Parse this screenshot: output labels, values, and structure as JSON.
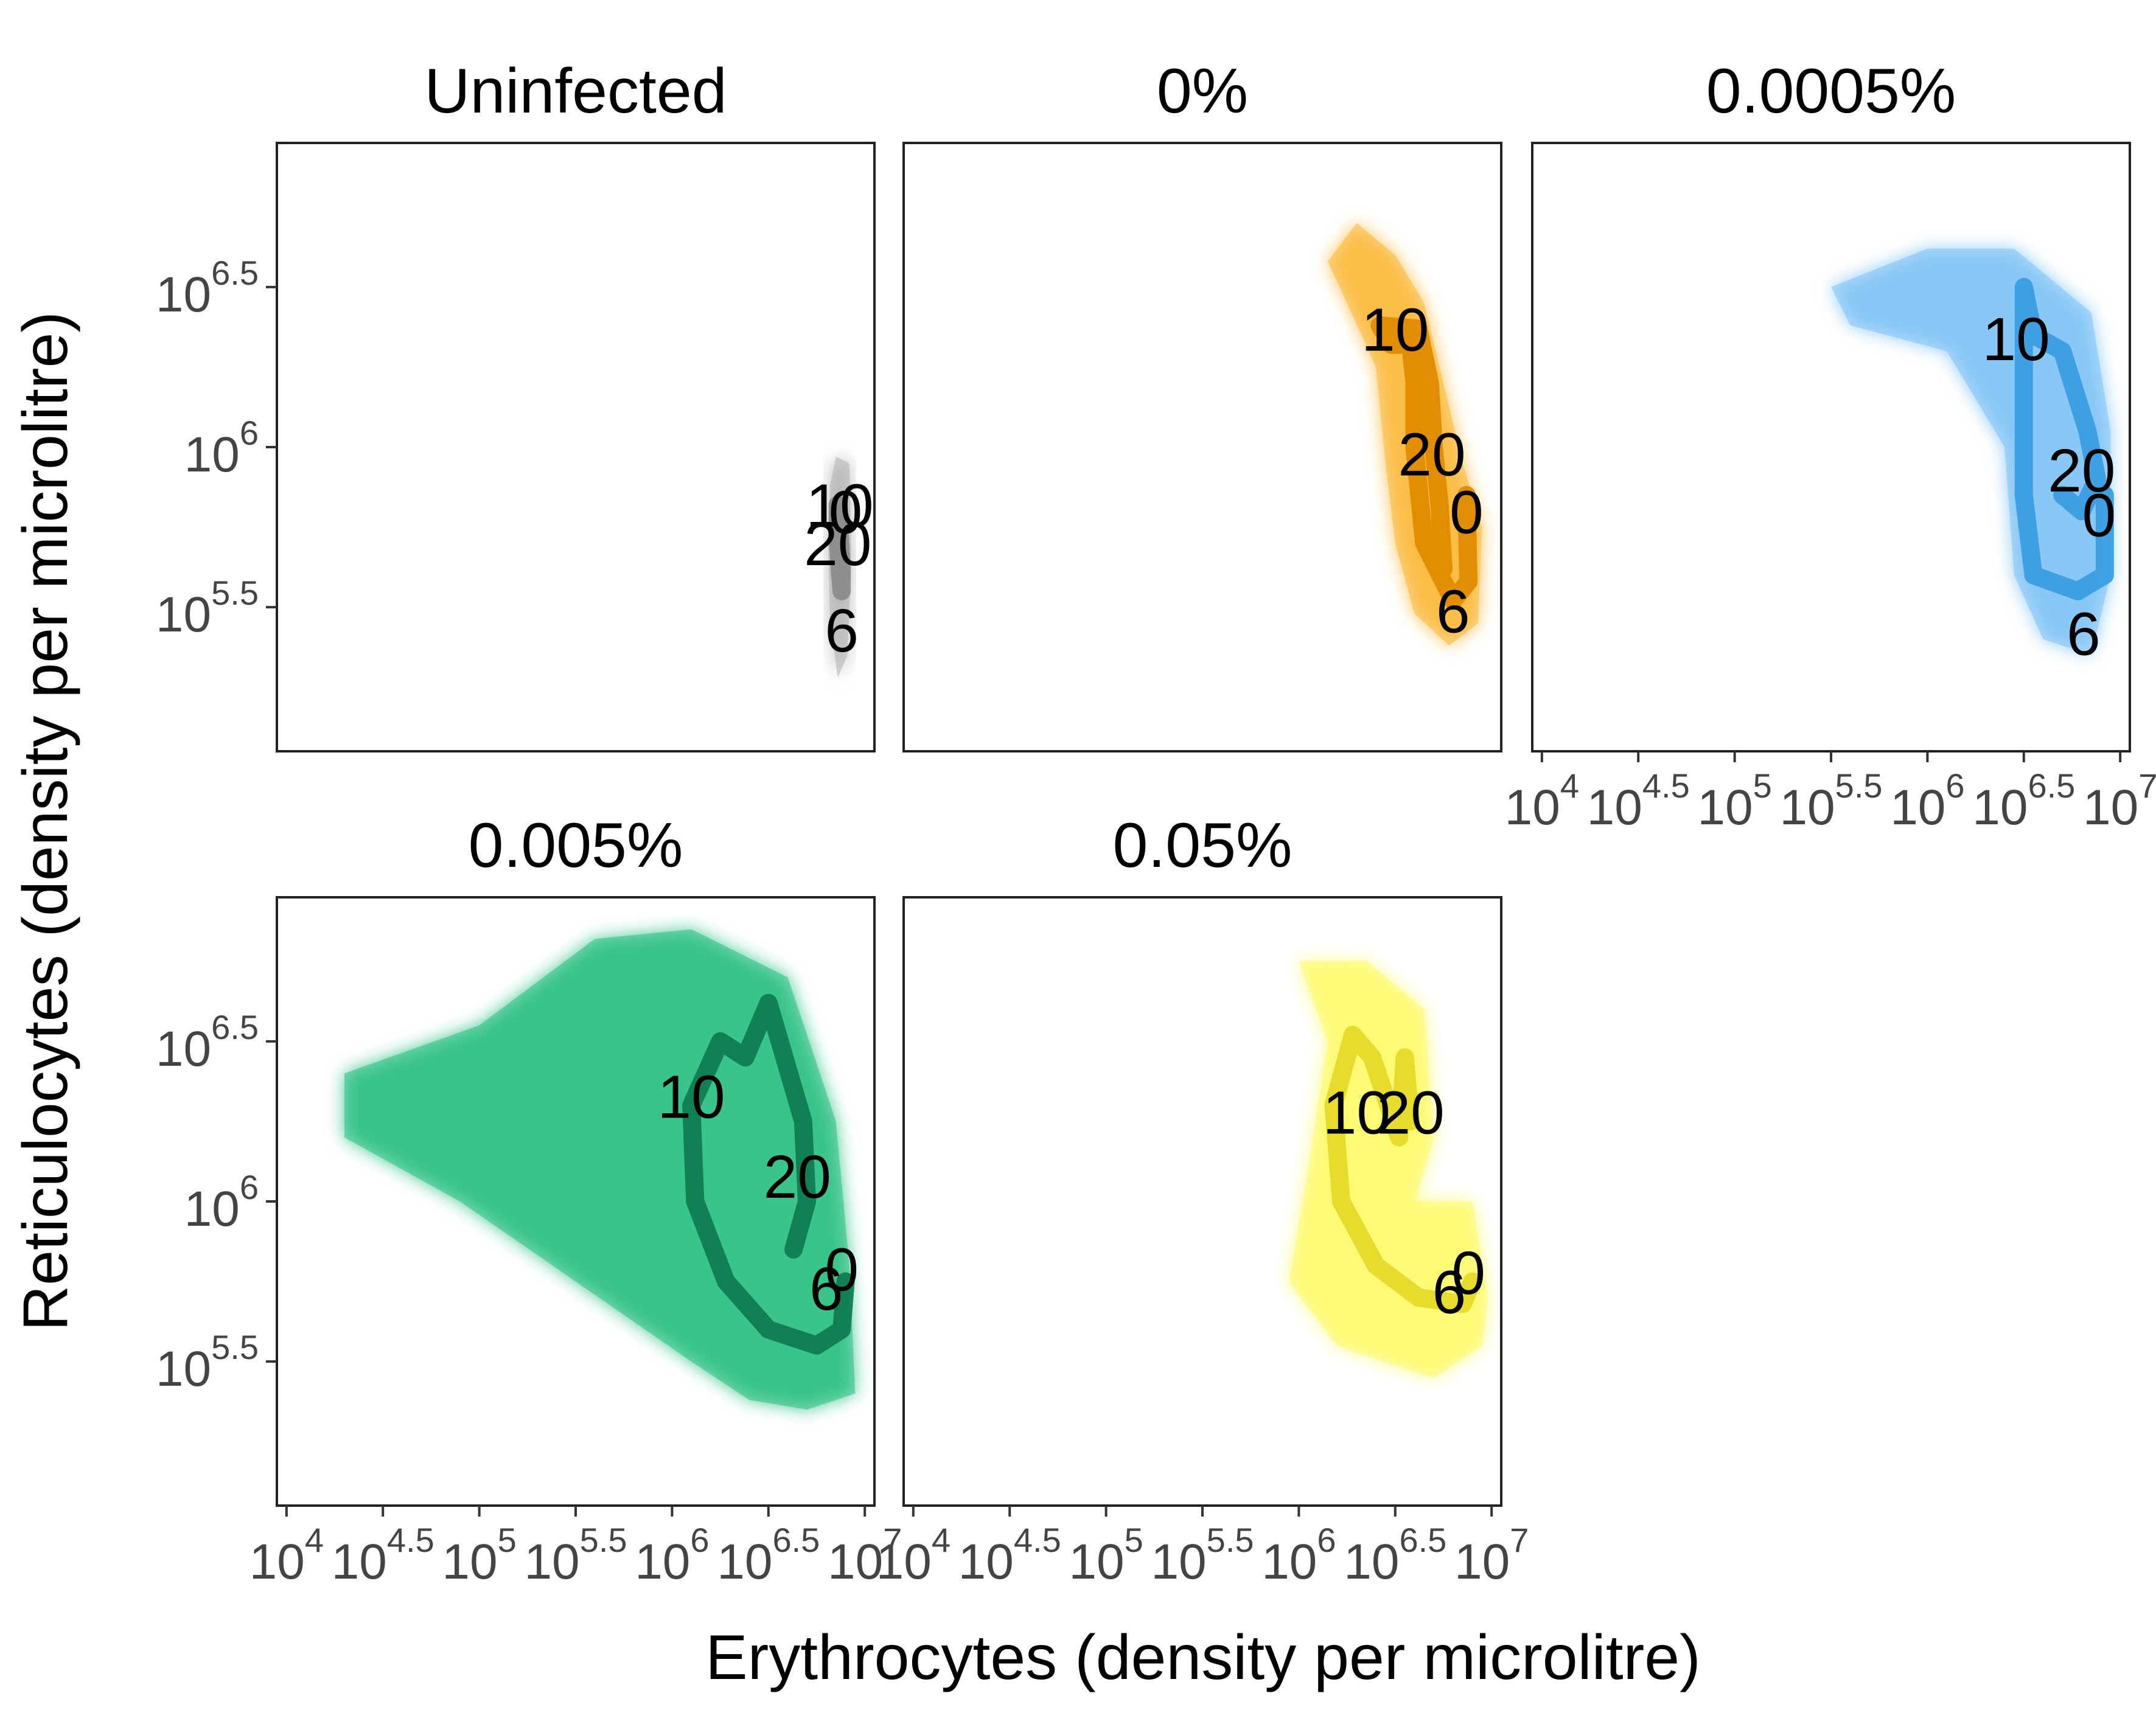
{
  "chart_data": {
    "type": "line",
    "xlabel": "Erythrocytes (density per microlitre)",
    "ylabel": "Reticulocytes (density per microlitre)",
    "x_scale": "log10",
    "y_scale": "log10",
    "xlim": [
      3.95,
      7.05
    ],
    "ylim": [
      5.05,
      6.95
    ],
    "x_ticks": [
      {
        "value": 4.0,
        "base": "10",
        "exp": "4"
      },
      {
        "value": 4.5,
        "base": "10",
        "exp": "4.5"
      },
      {
        "value": 5.0,
        "base": "10",
        "exp": "5"
      },
      {
        "value": 5.5,
        "base": "10",
        "exp": "5.5"
      },
      {
        "value": 6.0,
        "base": "10",
        "exp": "6"
      },
      {
        "value": 6.5,
        "base": "10",
        "exp": "6.5"
      },
      {
        "value": 7.0,
        "base": "10",
        "exp": "7"
      }
    ],
    "y_ticks": [
      {
        "value": 5.5,
        "base": "10",
        "exp": "5.5"
      },
      {
        "value": 6.0,
        "base": "10",
        "exp": "6"
      },
      {
        "value": 6.5,
        "base": "10",
        "exp": "6.5"
      }
    ],
    "panels": [
      {
        "title": "Uninfected",
        "color": "#8c8c8c",
        "cloud_color": "#b0b0b0",
        "mean_path": [
          [
            6.87,
            5.72
          ],
          [
            6.88,
            5.62
          ],
          [
            6.88,
            5.55
          ],
          [
            6.87,
            5.62
          ],
          [
            6.86,
            5.72
          ],
          [
            6.86,
            5.82
          ]
        ],
        "cloud": [
          [
            6.82,
            5.88
          ],
          [
            6.85,
            5.97
          ],
          [
            6.92,
            5.95
          ],
          [
            6.93,
            5.65
          ],
          [
            6.91,
            5.35
          ],
          [
            6.86,
            5.28
          ],
          [
            6.82,
            5.45
          ],
          [
            6.81,
            5.7
          ]
        ],
        "labels": [
          {
            "text": "10",
            "x": 6.87,
            "y": 5.82
          },
          {
            "text": "0",
            "x": 6.9,
            "y": 5.8
          },
          {
            "text": "20",
            "x": 6.86,
            "y": 5.7
          },
          {
            "text": "6",
            "x": 6.88,
            "y": 5.43
          }
        ]
      },
      {
        "title": "0%",
        "color": "#e08b00",
        "cloud_color": "#fbb838",
        "mean_path": [
          [
            6.87,
            5.85
          ],
          [
            6.88,
            5.58
          ],
          [
            6.8,
            5.52
          ],
          [
            6.65,
            5.7
          ],
          [
            6.6,
            6.0
          ],
          [
            6.6,
            6.2
          ],
          [
            6.58,
            6.32
          ],
          [
            6.48,
            6.32
          ],
          [
            6.42,
            6.38
          ],
          [
            6.62,
            6.37
          ],
          [
            6.68,
            6.2
          ],
          [
            6.7,
            6.0
          ],
          [
            6.73,
            5.82
          ],
          [
            6.75,
            5.62
          ]
        ],
        "cloud": [
          [
            6.15,
            6.58
          ],
          [
            6.3,
            6.7
          ],
          [
            6.5,
            6.6
          ],
          [
            6.65,
            6.45
          ],
          [
            6.75,
            6.2
          ],
          [
            6.85,
            5.95
          ],
          [
            6.95,
            5.75
          ],
          [
            6.93,
            5.45
          ],
          [
            6.78,
            5.38
          ],
          [
            6.6,
            5.48
          ],
          [
            6.5,
            5.7
          ],
          [
            6.45,
            5.95
          ],
          [
            6.4,
            6.25
          ],
          [
            6.25,
            6.45
          ]
        ],
        "labels": [
          {
            "text": "10",
            "x": 6.5,
            "y": 6.37
          },
          {
            "text": "20",
            "x": 6.69,
            "y": 5.98
          },
          {
            "text": "0",
            "x": 6.87,
            "y": 5.8
          },
          {
            "text": "6",
            "x": 6.8,
            "y": 5.49
          }
        ]
      },
      {
        "title": "0.0005%",
        "color": "#3a9ee0",
        "cloud_color": "#7fc3f5",
        "mean_path": [
          [
            6.92,
            5.85
          ],
          [
            6.92,
            5.6
          ],
          [
            6.78,
            5.55
          ],
          [
            6.55,
            5.6
          ],
          [
            6.5,
            5.85
          ],
          [
            6.5,
            6.1
          ],
          [
            6.5,
            6.5
          ],
          [
            6.55,
            6.35
          ],
          [
            6.7,
            6.3
          ],
          [
            6.83,
            6.05
          ],
          [
            6.88,
            5.9
          ],
          [
            6.8,
            5.8
          ],
          [
            6.7,
            5.85
          ]
        ],
        "cloud": [
          [
            5.5,
            6.5
          ],
          [
            6.0,
            6.62
          ],
          [
            6.45,
            6.62
          ],
          [
            6.85,
            6.42
          ],
          [
            6.95,
            6.05
          ],
          [
            6.95,
            5.6
          ],
          [
            6.85,
            5.35
          ],
          [
            6.6,
            5.4
          ],
          [
            6.45,
            5.6
          ],
          [
            6.4,
            6.0
          ],
          [
            6.1,
            6.3
          ],
          [
            5.6,
            6.38
          ]
        ],
        "labels": [
          {
            "text": "10",
            "x": 6.46,
            "y": 6.34
          },
          {
            "text": "20",
            "x": 6.8,
            "y": 5.93
          },
          {
            "text": "0",
            "x": 6.89,
            "y": 5.79
          },
          {
            "text": "6",
            "x": 6.81,
            "y": 5.42
          }
        ]
      },
      {
        "title": "0.005%",
        "color": "#0f7d52",
        "cloud_color": "#29c082",
        "mean_path": [
          [
            6.9,
            5.75
          ],
          [
            6.88,
            5.6
          ],
          [
            6.75,
            5.55
          ],
          [
            6.5,
            5.6
          ],
          [
            6.28,
            5.75
          ],
          [
            6.12,
            6.0
          ],
          [
            6.1,
            6.3
          ],
          [
            6.25,
            6.5
          ],
          [
            6.38,
            6.45
          ],
          [
            6.5,
            6.62
          ],
          [
            6.68,
            6.25
          ],
          [
            6.7,
            6.0
          ],
          [
            6.63,
            5.85
          ]
        ],
        "cloud": [
          [
            4.3,
            6.4
          ],
          [
            5.0,
            6.55
          ],
          [
            5.6,
            6.82
          ],
          [
            6.1,
            6.85
          ],
          [
            6.6,
            6.7
          ],
          [
            6.85,
            6.25
          ],
          [
            6.92,
            5.8
          ],
          [
            6.95,
            5.4
          ],
          [
            6.7,
            5.35
          ],
          [
            6.4,
            5.38
          ],
          [
            6.1,
            5.5
          ],
          [
            5.5,
            5.75
          ],
          [
            4.9,
            6.0
          ],
          [
            4.3,
            6.2
          ]
        ],
        "labels": [
          {
            "text": "10",
            "x": 6.1,
            "y": 6.33
          },
          {
            "text": "20",
            "x": 6.65,
            "y": 6.08
          },
          {
            "text": "0",
            "x": 6.88,
            "y": 5.79
          },
          {
            "text": "6",
            "x": 6.8,
            "y": 5.73
          }
        ]
      },
      {
        "title": "0.05%",
        "color": "#e6d92a",
        "cloud_color": "#fdfa6a",
        "mean_path": [
          [
            6.9,
            5.75
          ],
          [
            6.85,
            5.68
          ],
          [
            6.62,
            5.7
          ],
          [
            6.4,
            5.8
          ],
          [
            6.22,
            6.0
          ],
          [
            6.18,
            6.3
          ],
          [
            6.28,
            6.52
          ],
          [
            6.38,
            6.45
          ],
          [
            6.52,
            6.2
          ],
          [
            6.55,
            6.45
          ],
          [
            6.58,
            6.25
          ]
        ],
        "cloud": [
          [
            6.0,
            6.75
          ],
          [
            6.35,
            6.75
          ],
          [
            6.65,
            6.6
          ],
          [
            6.7,
            6.2
          ],
          [
            6.6,
            6.0
          ],
          [
            6.9,
            6.0
          ],
          [
            6.98,
            5.7
          ],
          [
            6.95,
            5.55
          ],
          [
            6.7,
            5.45
          ],
          [
            6.2,
            5.55
          ],
          [
            5.95,
            5.75
          ],
          [
            6.05,
            6.1
          ],
          [
            6.15,
            6.5
          ]
        ],
        "labels": [
          {
            "text": "10",
            "x": 6.3,
            "y": 6.28
          },
          {
            "text": "20",
            "x": 6.58,
            "y": 6.28
          },
          {
            "text": "0",
            "x": 6.88,
            "y": 5.78
          },
          {
            "text": "6",
            "x": 6.78,
            "y": 5.72
          }
        ]
      }
    ]
  }
}
